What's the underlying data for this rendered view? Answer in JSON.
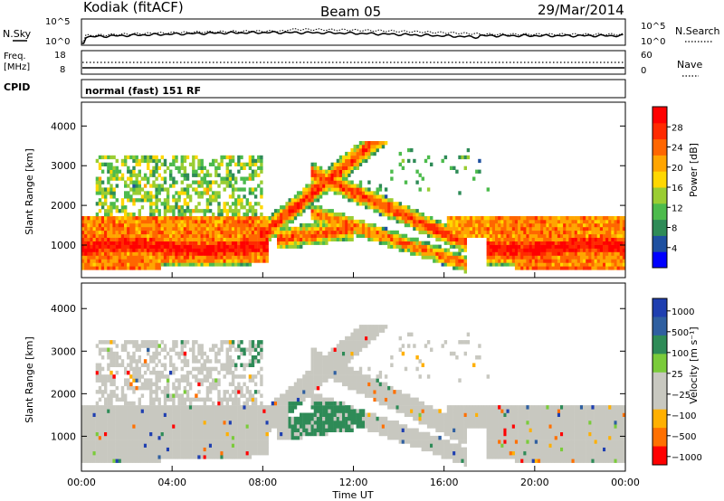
{
  "header": {
    "station": "Kodiak (fitACF)",
    "beam": "Beam 05",
    "date": "29/Mar/2014"
  },
  "noise_panel": {
    "left_label": "N.Sky",
    "right_label": "N.Search",
    "left_ticks": [
      "10^5",
      "10^0"
    ],
    "right_ticks": [
      "10^5",
      "10^0"
    ]
  },
  "freq_panel": {
    "left_label_top": "Freq.",
    "left_label_unit": "[MHz]",
    "right_label": "Nave",
    "left_ticks": [
      "18",
      "8"
    ],
    "right_ticks": [
      "60",
      "0"
    ]
  },
  "cpid": {
    "label": "CPID",
    "value": "normal (fast) 151 RF"
  },
  "colors": {
    "power": [
      "#0000ff",
      "#1e50a0",
      "#2e8b57",
      "#4cbb4c",
      "#9acd32",
      "#ffd700",
      "#ffa500",
      "#ff6600",
      "#ff2a00",
      "#ff0000"
    ],
    "velocity": [
      "#ff0000",
      "#ff7000",
      "#ffb000",
      "#c8c8c0",
      "#c8c8c0",
      "#7acb3a",
      "#2e8b57",
      "#2f5fa0",
      "#1f3fb0"
    ],
    "ground_scatter": "#c8c8c0"
  },
  "chart_data": [
    {
      "type": "heatmap",
      "name": "power",
      "ylabel": "Slant Range [km]",
      "yticks": [
        "1000",
        "2000",
        "3000",
        "4000"
      ],
      "yvalues": [
        1000,
        2000,
        3000,
        4000
      ],
      "ylim": [
        180,
        4600
      ],
      "xlim": [
        0,
        24
      ],
      "colorbar": {
        "label": "Power [dB]",
        "ticks": [
          "4",
          "8",
          "12",
          "16",
          "20",
          "24",
          "28"
        ],
        "values": [
          4,
          8,
          12,
          16,
          20,
          24,
          28
        ],
        "range": [
          0,
          32
        ]
      }
    },
    {
      "type": "heatmap",
      "name": "velocity",
      "ylabel": "Slant Range [km]",
      "yticks": [
        "1000",
        "2000",
        "3000",
        "4000"
      ],
      "yvalues": [
        1000,
        2000,
        3000,
        4000
      ],
      "ylim": [
        180,
        4600
      ],
      "xlim": [
        0,
        24
      ],
      "xlabel": "Time UT",
      "xticks": [
        "00:00",
        "04:00",
        "08:00",
        "12:00",
        "16:00",
        "20:00",
        "00:00"
      ],
      "xvalues": [
        0,
        4,
        8,
        12,
        16,
        20,
        24
      ],
      "colorbar": {
        "label": "Velocity [m s⁻¹]",
        "ticks": [
          "1000",
          "500",
          "100",
          "25",
          "−25",
          "−100",
          "−500",
          "−1000"
        ]
      }
    }
  ]
}
